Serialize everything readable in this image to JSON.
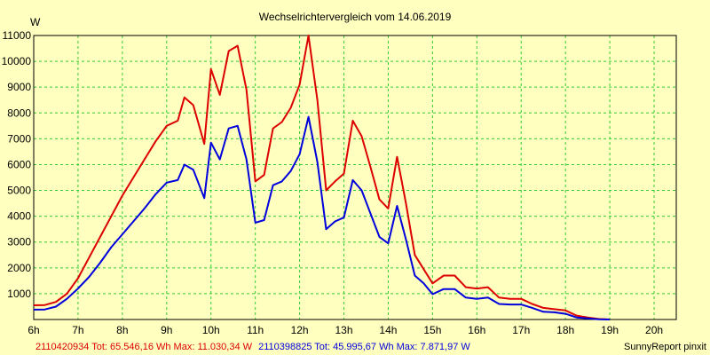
{
  "chart_data": {
    "type": "line",
    "title": "Wechselrichtervergleich vom 14.06.2019",
    "ylabel": "W",
    "xlabel": "",
    "ylim": [
      0,
      11000
    ],
    "yticks": [
      1000,
      2000,
      3000,
      4000,
      5000,
      6000,
      7000,
      8000,
      9000,
      10000,
      11000
    ],
    "xlim": [
      6.0,
      20.5
    ],
    "xticks": [
      {
        "value": 6,
        "label": "6h"
      },
      {
        "value": 7,
        "label": "7h"
      },
      {
        "value": 8,
        "label": "8h"
      },
      {
        "value": 9,
        "label": "9h"
      },
      {
        "value": 10,
        "label": "10h"
      },
      {
        "value": 11,
        "label": "11h"
      },
      {
        "value": 12,
        "label": "12h"
      },
      {
        "value": 13,
        "label": "13h"
      },
      {
        "value": 14,
        "label": "14h"
      },
      {
        "value": 15,
        "label": "15h"
      },
      {
        "value": 16,
        "label": "16h"
      },
      {
        "value": 17,
        "label": "17h"
      },
      {
        "value": 18,
        "label": "18h"
      },
      {
        "value": 19,
        "label": "19h"
      },
      {
        "value": 20,
        "label": "20h"
      }
    ],
    "grid": true,
    "background_color": "#FFFFC0",
    "grid_color": "#33CC33",
    "series": [
      {
        "name": "2110420934",
        "color": "#DD0000",
        "points": [
          [
            6.0,
            550
          ],
          [
            6.25,
            560
          ],
          [
            6.5,
            680
          ],
          [
            6.75,
            1000
          ],
          [
            7.0,
            1600
          ],
          [
            7.25,
            2400
          ],
          [
            7.5,
            3200
          ],
          [
            7.75,
            4000
          ],
          [
            8.0,
            4800
          ],
          [
            8.25,
            5500
          ],
          [
            8.5,
            6200
          ],
          [
            8.75,
            6900
          ],
          [
            9.0,
            7500
          ],
          [
            9.25,
            7700
          ],
          [
            9.4,
            8600
          ],
          [
            9.6,
            8300
          ],
          [
            9.85,
            6800
          ],
          [
            10.0,
            9700
          ],
          [
            10.2,
            8700
          ],
          [
            10.4,
            10400
          ],
          [
            10.6,
            10600
          ],
          [
            10.8,
            8900
          ],
          [
            11.0,
            5350
          ],
          [
            11.2,
            5600
          ],
          [
            11.4,
            7400
          ],
          [
            11.6,
            7650
          ],
          [
            11.8,
            8200
          ],
          [
            12.0,
            9100
          ],
          [
            12.2,
            11000
          ],
          [
            12.4,
            8500
          ],
          [
            12.6,
            5000
          ],
          [
            12.8,
            5350
          ],
          [
            13.0,
            5650
          ],
          [
            13.2,
            7700
          ],
          [
            13.4,
            7100
          ],
          [
            13.6,
            5900
          ],
          [
            13.8,
            4650
          ],
          [
            14.0,
            4300
          ],
          [
            14.2,
            6300
          ],
          [
            14.4,
            4500
          ],
          [
            14.6,
            2500
          ],
          [
            14.8,
            1950
          ],
          [
            15.0,
            1400
          ],
          [
            15.25,
            1700
          ],
          [
            15.5,
            1700
          ],
          [
            15.75,
            1250
          ],
          [
            16.0,
            1200
          ],
          [
            16.25,
            1250
          ],
          [
            16.5,
            850
          ],
          [
            16.75,
            800
          ],
          [
            17.0,
            800
          ],
          [
            17.25,
            600
          ],
          [
            17.5,
            450
          ],
          [
            17.75,
            400
          ],
          [
            18.0,
            350
          ],
          [
            18.25,
            150
          ],
          [
            18.5,
            80
          ],
          [
            18.75,
            20
          ],
          [
            19.0,
            0
          ]
        ]
      },
      {
        "name": "2110398825",
        "color": "#0000DD",
        "points": [
          [
            6.0,
            380
          ],
          [
            6.25,
            390
          ],
          [
            6.5,
            500
          ],
          [
            6.75,
            800
          ],
          [
            7.0,
            1200
          ],
          [
            7.25,
            1650
          ],
          [
            7.5,
            2200
          ],
          [
            7.75,
            2800
          ],
          [
            8.0,
            3300
          ],
          [
            8.25,
            3800
          ],
          [
            8.5,
            4300
          ],
          [
            8.75,
            4850
          ],
          [
            9.0,
            5300
          ],
          [
            9.25,
            5400
          ],
          [
            9.4,
            6000
          ],
          [
            9.6,
            5800
          ],
          [
            9.85,
            4700
          ],
          [
            10.0,
            6850
          ],
          [
            10.2,
            6200
          ],
          [
            10.4,
            7400
          ],
          [
            10.6,
            7500
          ],
          [
            10.8,
            6200
          ],
          [
            11.0,
            3750
          ],
          [
            11.2,
            3850
          ],
          [
            11.4,
            5200
          ],
          [
            11.6,
            5350
          ],
          [
            11.8,
            5750
          ],
          [
            12.0,
            6400
          ],
          [
            12.2,
            7850
          ],
          [
            12.4,
            6100
          ],
          [
            12.6,
            3500
          ],
          [
            12.8,
            3800
          ],
          [
            13.0,
            3950
          ],
          [
            13.2,
            5400
          ],
          [
            13.4,
            5000
          ],
          [
            13.6,
            4100
          ],
          [
            13.8,
            3200
          ],
          [
            14.0,
            2950
          ],
          [
            14.2,
            4400
          ],
          [
            14.4,
            3100
          ],
          [
            14.6,
            1700
          ],
          [
            14.8,
            1400
          ],
          [
            15.0,
            980
          ],
          [
            15.25,
            1180
          ],
          [
            15.5,
            1180
          ],
          [
            15.75,
            850
          ],
          [
            16.0,
            800
          ],
          [
            16.25,
            850
          ],
          [
            16.5,
            600
          ],
          [
            16.75,
            580
          ],
          [
            17.0,
            580
          ],
          [
            17.25,
            450
          ],
          [
            17.5,
            300
          ],
          [
            17.75,
            280
          ],
          [
            18.0,
            220
          ],
          [
            18.25,
            80
          ],
          [
            18.5,
            40
          ],
          [
            18.75,
            10
          ],
          [
            19.0,
            0
          ]
        ]
      }
    ],
    "footer": {
      "red_text": "2110420934 Tot: 65.546,16 Wh Max: 11.030,34 W",
      "blue_text": "2110398825 Tot: 45.995,67 Wh Max: 7.871,97 W",
      "credit": "SunnyReport pinxit"
    }
  }
}
